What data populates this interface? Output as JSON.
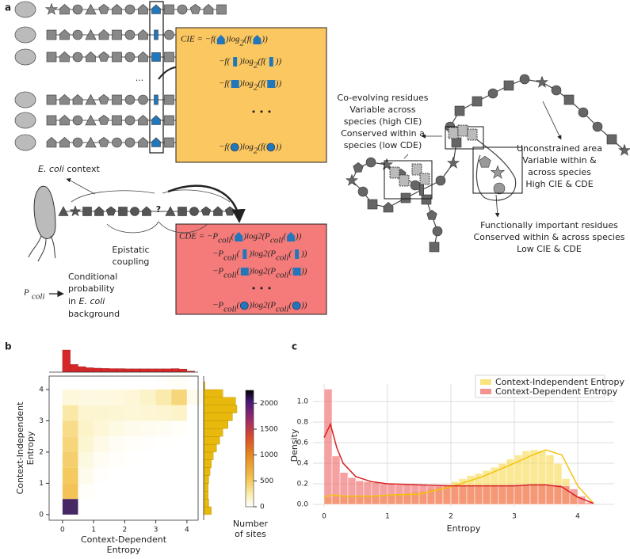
{
  "panel_labels": {
    "a": "a",
    "b": "b",
    "c": "c"
  },
  "panel_a": {
    "row_ellipsis": "...",
    "cie_lines": [
      [
        "CIE = −f(",
        ")log",
        "2",
        "(f(",
        "))"
      ],
      [
        "−f(",
        ")log",
        "2",
        "(f(",
        "))"
      ],
      [
        "−f(",
        ")log",
        "2",
        "(f(",
        "))"
      ],
      [
        "−f(",
        ")log",
        "2",
        "(f(",
        "))"
      ]
    ],
    "cie_dots": "• • •",
    "ecoli_context": [
      "E. coli",
      " context"
    ],
    "question": "?",
    "epistatic": [
      "Epistatic",
      "coupling"
    ],
    "cde_lines": [
      [
        "CDE = −P",
        "coli",
        "(",
        ")log",
        "2",
        "(P",
        "coli",
        "(",
        "))"
      ],
      [
        "−P",
        "coli",
        "(",
        ")log",
        "2",
        "(P",
        "coli",
        "(",
        "))"
      ],
      [
        "−P",
        "coli",
        "(",
        ")log",
        "2",
        "(P",
        "coli",
        "(",
        "))"
      ],
      [
        "−P",
        "coli",
        "(",
        ")log",
        "2",
        "(P",
        "coli",
        "(",
        "))"
      ]
    ],
    "cde_dots": "• • •",
    "p_coli": [
      "P",
      "coli"
    ],
    "conditional": [
      "Conditional",
      "probability"
    ],
    "conditional_in": [
      "in ",
      "E. coli"
    ],
    "background": "background",
    "coevolving": [
      "Co-evolving residues",
      "Variable across",
      "species (high CIE)",
      "Conserved within a",
      "species (low CDE)"
    ],
    "unconstrained": [
      "Unconstrained area",
      "Variable within &",
      "across species",
      "High CIE & CDE"
    ],
    "functional": [
      "Functionally important residues",
      "Conserved within & across species",
      "Low CIE & CDE"
    ]
  },
  "chart_data": [
    {
      "type": "heatmap",
      "xlabel": [
        "Context-Dependent",
        "Entropy"
      ],
      "ylabel": [
        "Context-Independent",
        "Entropy"
      ],
      "xbins": [
        0,
        0.5,
        1,
        1.5,
        2,
        2.5,
        3,
        3.5,
        4,
        4.5
      ],
      "ybins": [
        0,
        0.5,
        1,
        1.5,
        2,
        2.5,
        3,
        3.5,
        4,
        4.5
      ],
      "values": [
        [
          2100,
          0,
          0,
          0,
          0,
          0,
          0,
          0,
          0
        ],
        [
          600,
          20,
          0,
          0,
          0,
          0,
          0,
          0,
          0
        ],
        [
          550,
          60,
          10,
          0,
          0,
          0,
          0,
          0,
          0
        ],
        [
          500,
          100,
          40,
          15,
          5,
          0,
          0,
          0,
          0
        ],
        [
          450,
          150,
          80,
          40,
          20,
          10,
          5,
          0,
          0
        ],
        [
          400,
          180,
          130,
          90,
          60,
          50,
          40,
          20,
          0
        ],
        [
          300,
          160,
          150,
          140,
          130,
          140,
          160,
          180,
          0
        ],
        [
          120,
          100,
          100,
          110,
          130,
          180,
          280,
          450,
          60
        ],
        [
          0,
          0,
          0,
          0,
          0,
          0,
          10,
          30,
          0
        ]
      ],
      "xlim": [
        -0.43,
        4.36
      ],
      "ylim": [
        -0.18,
        4.43
      ],
      "xticks": [
        0,
        1,
        2,
        3,
        4
      ],
      "yticks": [
        0,
        1,
        2,
        3,
        4
      ],
      "clim": [
        0,
        2250
      ],
      "cticks": [
        0,
        500,
        1000,
        1500,
        2000
      ],
      "clabel": [
        "Number",
        "of sites"
      ],
      "top_hist": {
        "color": "#d62728",
        "bins": [
          0,
          0.25,
          0.5,
          0.75,
          1,
          1.25,
          1.5,
          1.75,
          2,
          2.25,
          2.5,
          2.75,
          3,
          3.25,
          3.5,
          3.75,
          4,
          4.25
        ],
        "values": [
          1.0,
          0.35,
          0.25,
          0.2,
          0.18,
          0.17,
          0.16,
          0.16,
          0.15,
          0.15,
          0.15,
          0.15,
          0.15,
          0.15,
          0.16,
          0.14,
          0.05
        ]
      },
      "right_hist": {
        "color": "#e8b90c",
        "bins": [
          0,
          0.25,
          0.5,
          0.75,
          1,
          1.25,
          1.5,
          1.75,
          2,
          2.25,
          2.5,
          2.75,
          3,
          3.25,
          3.5,
          3.75,
          4,
          4.25
        ],
        "values": [
          0.12,
          0.08,
          0.07,
          0.07,
          0.08,
          0.1,
          0.12,
          0.15,
          0.2,
          0.25,
          0.3,
          0.38,
          0.45,
          0.52,
          0.5,
          0.3,
          0.02
        ]
      }
    },
    {
      "type": "histogram",
      "xlabel": "Entropy",
      "ylabel": "Density",
      "bins": [
        0,
        0.125,
        0.25,
        0.375,
        0.5,
        0.625,
        0.75,
        0.875,
        1,
        1.125,
        1.25,
        1.375,
        1.5,
        1.625,
        1.75,
        1.875,
        2,
        2.125,
        2.25,
        2.375,
        2.5,
        2.625,
        2.75,
        2.875,
        3,
        3.125,
        3.25,
        3.375,
        3.5,
        3.625,
        3.75,
        3.875,
        4,
        4.125,
        4.25
      ],
      "kde_x": [
        0,
        0.1,
        0.2,
        0.3,
        0.5,
        0.75,
        1,
        1.5,
        2,
        2.5,
        3,
        3.25,
        3.5,
        3.75,
        4,
        4.25
      ],
      "series": [
        {
          "name": "Context-Independent Entropy",
          "color": "#f7d94c",
          "line_color": "#f2c40f",
          "values": [
            0.07,
            0.08,
            0.08,
            0.08,
            0.08,
            0.08,
            0.09,
            0.09,
            0.1,
            0.1,
            0.11,
            0.12,
            0.13,
            0.15,
            0.17,
            0.19,
            0.22,
            0.25,
            0.28,
            0.3,
            0.33,
            0.36,
            0.4,
            0.44,
            0.48,
            0.52,
            0.53,
            0.52,
            0.48,
            0.4,
            0.25,
            0.1,
            0.02,
            0
          ],
          "kde": [
            0.07,
            0.09,
            0.09,
            0.08,
            0.08,
            0.08,
            0.09,
            0.1,
            0.17,
            0.27,
            0.4,
            0.47,
            0.53,
            0.48,
            0.18,
            0.01
          ]
        },
        {
          "name": "Context-Dependent Entropy",
          "color": "#f06262",
          "line_color": "#d62020",
          "values": [
            1.12,
            0.47,
            0.31,
            0.26,
            0.23,
            0.22,
            0.21,
            0.2,
            0.2,
            0.19,
            0.19,
            0.19,
            0.19,
            0.18,
            0.18,
            0.18,
            0.18,
            0.18,
            0.18,
            0.18,
            0.18,
            0.18,
            0.18,
            0.19,
            0.19,
            0.19,
            0.19,
            0.19,
            0.19,
            0.19,
            0.18,
            0.15,
            0.08,
            0.02
          ],
          "kde": [
            0.65,
            0.78,
            0.55,
            0.4,
            0.27,
            0.22,
            0.2,
            0.19,
            0.18,
            0.18,
            0.18,
            0.19,
            0.19,
            0.17,
            0.07,
            0.01
          ]
        }
      ],
      "xlim": [
        -0.175,
        4.575
      ],
      "ylim": [
        -0.023,
        1.17
      ],
      "xticks": [
        0,
        1,
        2,
        3,
        4
      ],
      "yticks": [
        {
          "value": 0,
          "label": "0.0"
        },
        {
          "value": 0.2,
          "label": "0.2"
        },
        {
          "value": 0.4,
          "label": "0.4"
        },
        {
          "value": 0.6,
          "label": "0.6"
        },
        {
          "value": 0.8,
          "label": "0.8"
        },
        {
          "value": 1.0,
          "label": "1.0"
        }
      ],
      "grid": true,
      "legend": "upper right"
    }
  ]
}
